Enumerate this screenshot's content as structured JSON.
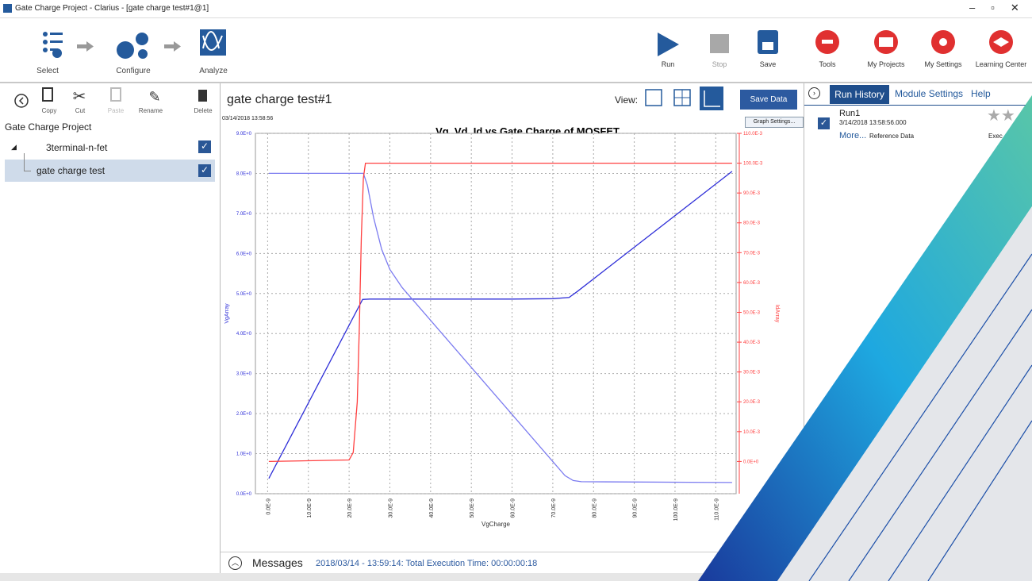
{
  "window": {
    "title": "Gate Charge Project - Clarius - [gate charge test#1@1]"
  },
  "toolbar": {
    "steps": [
      "Select",
      "Configure",
      "Analyze"
    ],
    "actions": [
      "Run",
      "Stop",
      "Save"
    ],
    "menus": [
      "Tools",
      "My Projects",
      "My Settings",
      "Learning Center"
    ]
  },
  "project": {
    "buttons": [
      "Copy",
      "Cut",
      "Paste",
      "Rename",
      "Delete"
    ],
    "title": "Gate Charge Project",
    "items": [
      "3terminal-n-fet",
      "gate charge test"
    ]
  },
  "document": {
    "title": "gate charge test#1",
    "view_label": "View:",
    "save_button": "Save Data",
    "timestamp": "03/14/2018 13:58:56",
    "graph_settings": "Graph Settings..."
  },
  "chart_data": {
    "type": "line",
    "title": "Vg, Vd, Id vs Gate Charge of MOSFET",
    "x_label": "VgCharge",
    "y_label": "VgArray",
    "y2_label": "IdArray",
    "grid": true,
    "xlim": [
      -3e-09,
      1.15e-07
    ],
    "ylim": [
      0,
      9
    ],
    "y2lim": [
      -0.0108,
      0.11
    ],
    "xticks": [
      {
        "value": 0,
        "label": "0.0E-9"
      },
      {
        "value": 1e-08,
        "label": "10.0E-9"
      },
      {
        "value": 2e-08,
        "label": "20.0E-9"
      },
      {
        "value": 3e-08,
        "label": "30.0E-9"
      },
      {
        "value": 4e-08,
        "label": "40.0E-9"
      },
      {
        "value": 5e-08,
        "label": "50.0E-9"
      },
      {
        "value": 6e-08,
        "label": "60.0E-9"
      },
      {
        "value": 7e-08,
        "label": "70.0E-9"
      },
      {
        "value": 8e-08,
        "label": "80.0E-9"
      },
      {
        "value": 9e-08,
        "label": "90.0E-9"
      },
      {
        "value": 1e-07,
        "label": "100.0E-9"
      },
      {
        "value": 1.1e-07,
        "label": "110.0E-9"
      }
    ],
    "yticks": [
      {
        "value": 0,
        "label": "0.0E+0"
      },
      {
        "value": 1,
        "label": "1.0E+0"
      },
      {
        "value": 2,
        "label": "2.0E+0"
      },
      {
        "value": 3,
        "label": "3.0E+0"
      },
      {
        "value": 4,
        "label": "4.0E+0"
      },
      {
        "value": 5,
        "label": "5.0E+0"
      },
      {
        "value": 6,
        "label": "6.0E+0"
      },
      {
        "value": 7,
        "label": "7.0E+0"
      },
      {
        "value": 8,
        "label": "8.0E+0"
      },
      {
        "value": 9,
        "label": "9.0E+0"
      }
    ],
    "y2ticks": [
      {
        "value": 0,
        "label": "0.0E+0"
      },
      {
        "value": 0.01,
        "label": "10.0E-3"
      },
      {
        "value": 0.02,
        "label": "20.0E-3"
      },
      {
        "value": 0.03,
        "label": "30.0E-3"
      },
      {
        "value": 0.04,
        "label": "40.0E-3"
      },
      {
        "value": 0.05,
        "label": "50.0E-3"
      },
      {
        "value": 0.06,
        "label": "60.0E-3"
      },
      {
        "value": 0.07,
        "label": "70.0E-3"
      },
      {
        "value": 0.08,
        "label": "80.0E-3"
      },
      {
        "value": 0.09,
        "label": "90.0E-3"
      },
      {
        "value": 0.1,
        "label": "100.0E-3"
      },
      {
        "value": 0.11,
        "label": "110.0E-3"
      }
    ],
    "series": [
      {
        "color": "#2f2fd8",
        "x": [
          3e-10,
          2.33e-08,
          2.5e-08,
          4e-08,
          6e-08,
          7e-08,
          7.4e-08,
          7.6e-08,
          1.14e-07
        ],
        "values": [
          0.38,
          4.85,
          4.86,
          4.86,
          4.86,
          4.87,
          4.9,
          5.05,
          8.05
        ]
      },
      {
        "color": "#7b7bf0",
        "x": [
          3e-10,
          2.35e-08,
          2.45e-08,
          2.6e-08,
          2.8e-08,
          3e-08,
          3.3e-08,
          3.6e-08,
          7.3e-08,
          7.5e-08,
          7.7e-08,
          1.14e-07
        ],
        "values": [
          8.0,
          8.0,
          7.7,
          6.9,
          6.1,
          5.6,
          5.15,
          4.8,
          0.45,
          0.33,
          0.3,
          0.28
        ]
      },
      {
        "color": "#ff4040",
        "axis": "y2",
        "x": [
          3e-10,
          2e-08,
          2.1e-08,
          2.2e-08,
          2.25e-08,
          2.3e-08,
          2.35e-08,
          2.4e-08,
          1.14e-07
        ],
        "values": [
          0,
          0.0005,
          0.003,
          0.02,
          0.045,
          0.075,
          0.095,
          0.1,
          0.1
        ]
      }
    ]
  },
  "run_history": {
    "tabs": [
      "Run History",
      "Module Settings",
      "Help"
    ],
    "run_name": "Run1",
    "run_time": "3/14/2018 13:58:56.000",
    "more": "More...",
    "reference": "Reference Data",
    "status": "Exec"
  },
  "messages": {
    "title": "Messages",
    "text": "2018/03/14 - 13:59:14: Total Execution Time: 00:00:00:18"
  }
}
